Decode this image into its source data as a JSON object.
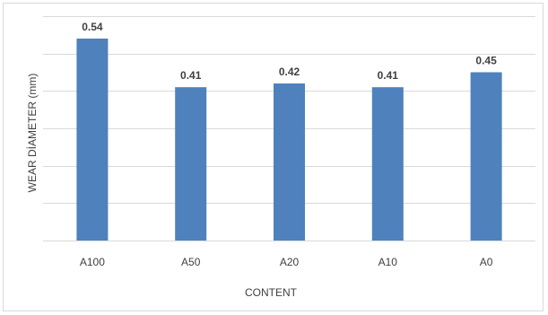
{
  "chart_data": {
    "type": "bar",
    "title": "",
    "xlabel": "CONTENT",
    "ylabel": "WEAR DİAMETER (mm)",
    "categories": [
      "A100",
      "A50",
      "A20",
      "A10",
      "A0"
    ],
    "values": [
      0.54,
      0.41,
      0.42,
      0.41,
      0.45
    ],
    "data_labels": [
      "0.54",
      "0.41",
      "0.42",
      "0.41",
      "0.45"
    ],
    "ylim": [
      0,
      0.6
    ],
    "grid": true,
    "legend": "none",
    "bar_color": "#4f81bd"
  }
}
